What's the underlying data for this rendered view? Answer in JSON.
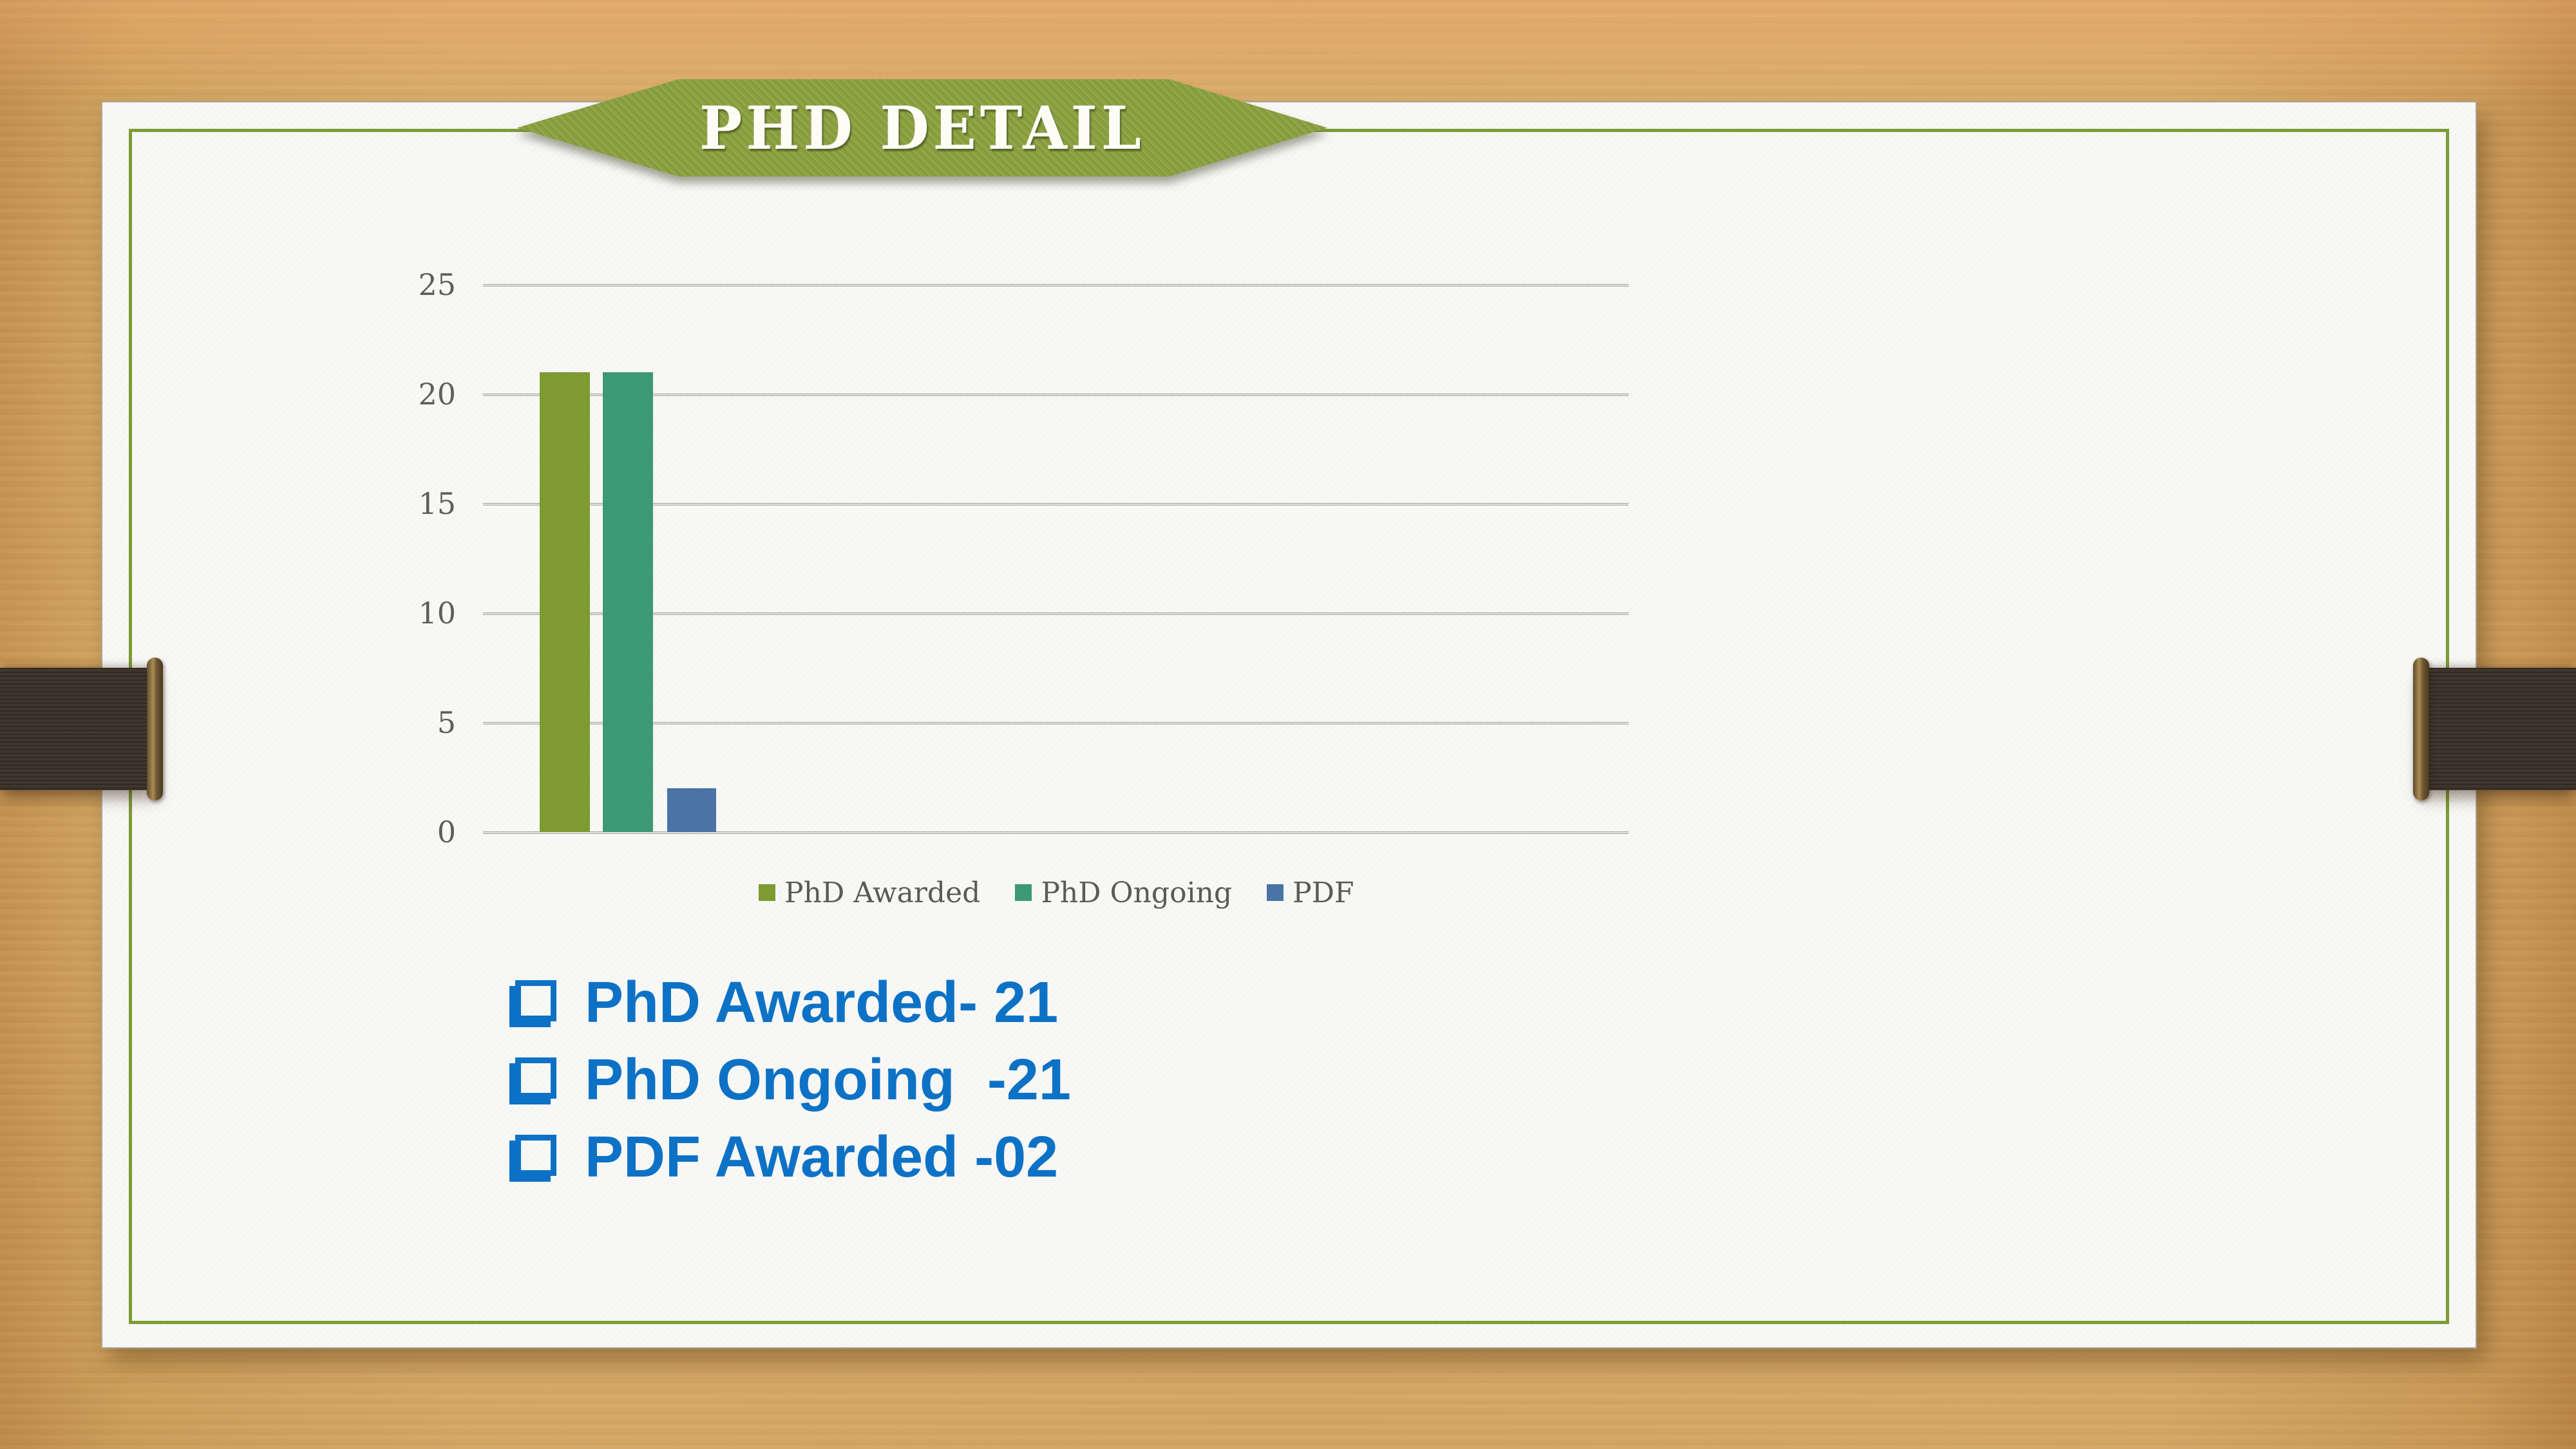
{
  "banner": {
    "title": "PHD DETAIL"
  },
  "chart_data": {
    "type": "bar",
    "title": "",
    "xlabel": "",
    "ylabel": "",
    "categories": [
      ""
    ],
    "series": [
      {
        "name": "PhD Awarded",
        "value": 21,
        "color": "#7e9b33"
      },
      {
        "name": "PhD Ongoing",
        "value": 21,
        "color": "#3d9878"
      },
      {
        "name": "PDF",
        "value": 2,
        "color": "#4a73a6"
      }
    ],
    "ylim": [
      0,
      25
    ],
    "yticks": [
      0,
      5,
      10,
      15,
      20,
      25
    ],
    "grid": true,
    "legend_position": "bottom"
  },
  "bullets": [
    {
      "text": "PhD Awarded- 21"
    },
    {
      "text": "PhD Ongoing  -21"
    },
    {
      "text": "PDF Awarded -02"
    }
  ],
  "colors": {
    "slide_border_green": "#7d9c36",
    "banner_green": "#8ca241",
    "bar_olive": "#7e9b33",
    "bar_teal": "#3d9878",
    "bar_blue": "#4a73a6",
    "bullet_blue": "#0d72c6",
    "strap_brown": "#3a3129",
    "wood_tan": "#ddab63",
    "axis_text_gray": "#605d5a",
    "gridline_gray": "#b3b0ac"
  }
}
